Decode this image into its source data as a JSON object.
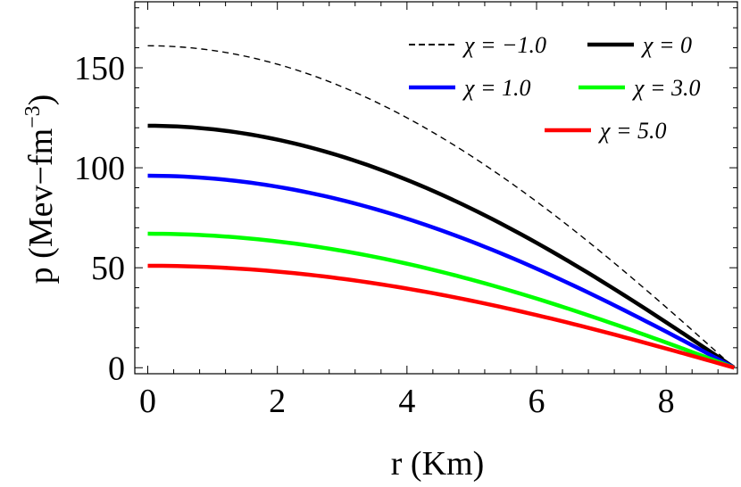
{
  "chart_data": {
    "type": "line",
    "title": "",
    "xlabel": "r (Km)",
    "ylabel_main": "p (Mev−fm",
    "ylabel_exp": "−3",
    "ylabel_close": ")",
    "xlim": [
      -0.2,
      9.1
    ],
    "ylim": [
      -3,
      183
    ],
    "xticks": [
      0,
      2,
      4,
      6,
      8
    ],
    "xtick_labels": [
      "0",
      "2",
      "4",
      "6",
      "8"
    ],
    "yticks": [
      0,
      50,
      100,
      150
    ],
    "ytick_labels": [
      "0",
      "50",
      "100",
      "150"
    ],
    "x_minor_step": 0.4,
    "y_minor_step": 10,
    "grid": false,
    "legend_position": "top-right",
    "series": [
      {
        "name": "χ = −1.0",
        "color": "#000000",
        "dash": "dashed",
        "width": 1.4,
        "x": [
          0,
          9.05
        ],
        "center": 161,
        "end": 0
      },
      {
        "name": "χ = 0",
        "color": "#000000",
        "dash": "solid",
        "width": 4.5,
        "x": [
          0,
          9.05
        ],
        "center": 121,
        "end": 0
      },
      {
        "name": "χ = 1.0",
        "color": "#0000ff",
        "dash": "solid",
        "width": 4.5,
        "x": [
          0,
          9.05
        ],
        "center": 96,
        "end": 0
      },
      {
        "name": "χ = 3.0",
        "color": "#00ff00",
        "dash": "solid",
        "width": 4.5,
        "x": [
          0,
          9.05
        ],
        "center": 67,
        "end": 0
      },
      {
        "name": "χ = 5.0",
        "color": "#ff0000",
        "dash": "solid",
        "width": 4.5,
        "x": [
          0,
          9.05
        ],
        "center": 51,
        "end": 0
      }
    ]
  }
}
